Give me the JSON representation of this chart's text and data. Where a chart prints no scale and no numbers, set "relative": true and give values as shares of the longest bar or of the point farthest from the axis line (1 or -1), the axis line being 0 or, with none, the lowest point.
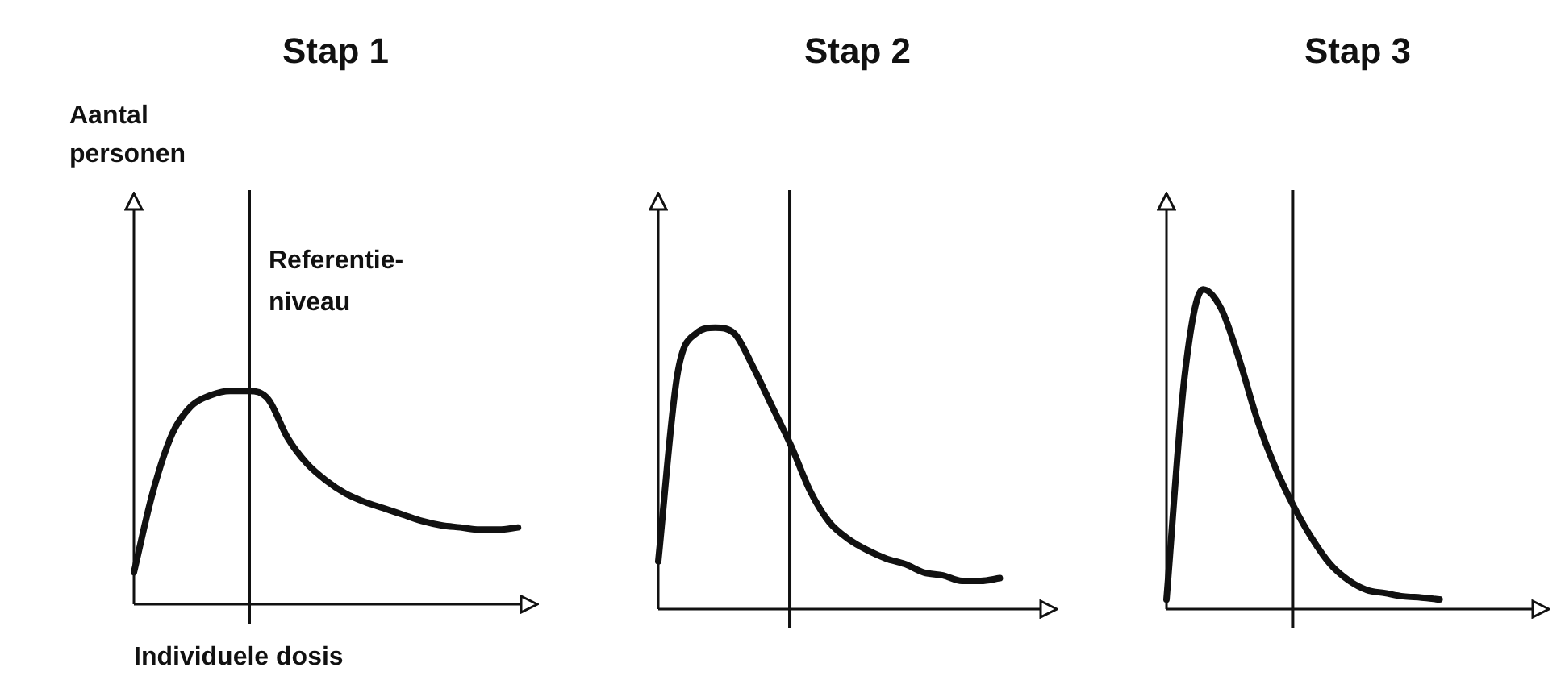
{
  "chart_data": [
    {
      "type": "line",
      "title": "Stap 1",
      "ylabel": "Aantal personen",
      "xlabel": "Individuele dosis",
      "relative": true,
      "grid": false,
      "legend": false,
      "marker": "none",
      "line_style": "solid",
      "tick_labels": false,
      "annotations": [
        "Referentie-niveau"
      ],
      "categories": [
        null,
        null,
        null,
        null,
        null,
        null,
        null,
        null,
        null,
        null,
        null,
        null,
        null,
        null,
        null,
        null,
        null,
        null,
        null,
        null,
        null,
        null
      ],
      "series": [
        {
          "color": "#111111",
          "values": [
            0.15,
            0.53,
            0.8,
            0.93,
            0.98,
            1,
            1,
            0.96,
            0.78,
            0.66,
            0.58,
            0.52,
            0.48,
            0.45,
            0.42,
            0.39,
            0.37,
            0.36,
            0.35,
            0.35,
            0.36,
            null
          ]
        }
      ]
    },
    {
      "type": "line",
      "title": "Stap 2",
      "relative": true,
      "grid": false,
      "legend": false,
      "marker": "none",
      "line_style": "solid",
      "tick_labels": false,
      "categories": [
        null,
        null,
        null,
        null,
        null,
        null,
        null,
        null,
        null,
        null,
        null,
        null,
        null,
        null,
        null,
        null,
        null,
        null,
        null,
        null,
        null,
        null
      ],
      "series": [
        {
          "color": "#111111",
          "values": [
            0.17,
            0.83,
            0.98,
            1,
            0.98,
            0.86,
            0.72,
            0.58,
            0.42,
            0.31,
            0.25,
            0.21,
            0.18,
            0.16,
            0.13,
            0.12,
            0.1,
            0.1,
            0.11,
            null,
            null,
            null
          ]
        }
      ]
    },
    {
      "type": "line",
      "title": "Stap 3",
      "relative": true,
      "grid": false,
      "legend": false,
      "marker": "none",
      "line_style": "solid",
      "tick_labels": false,
      "categories": [
        null,
        null,
        null,
        null,
        null,
        null,
        null,
        null,
        null,
        null,
        null,
        null,
        null,
        null,
        null,
        null,
        null,
        null,
        null,
        null,
        null,
        null
      ],
      "series": [
        {
          "color": "#111111",
          "values": [
            0.03,
            0.73,
            1,
            0.94,
            0.78,
            0.59,
            0.44,
            0.32,
            0.22,
            0.14,
            0.09,
            0.06,
            0.05,
            0.04,
            0.036,
            0.03,
            null,
            null,
            null,
            null,
            null,
            null
          ]
        }
      ]
    }
  ]
}
